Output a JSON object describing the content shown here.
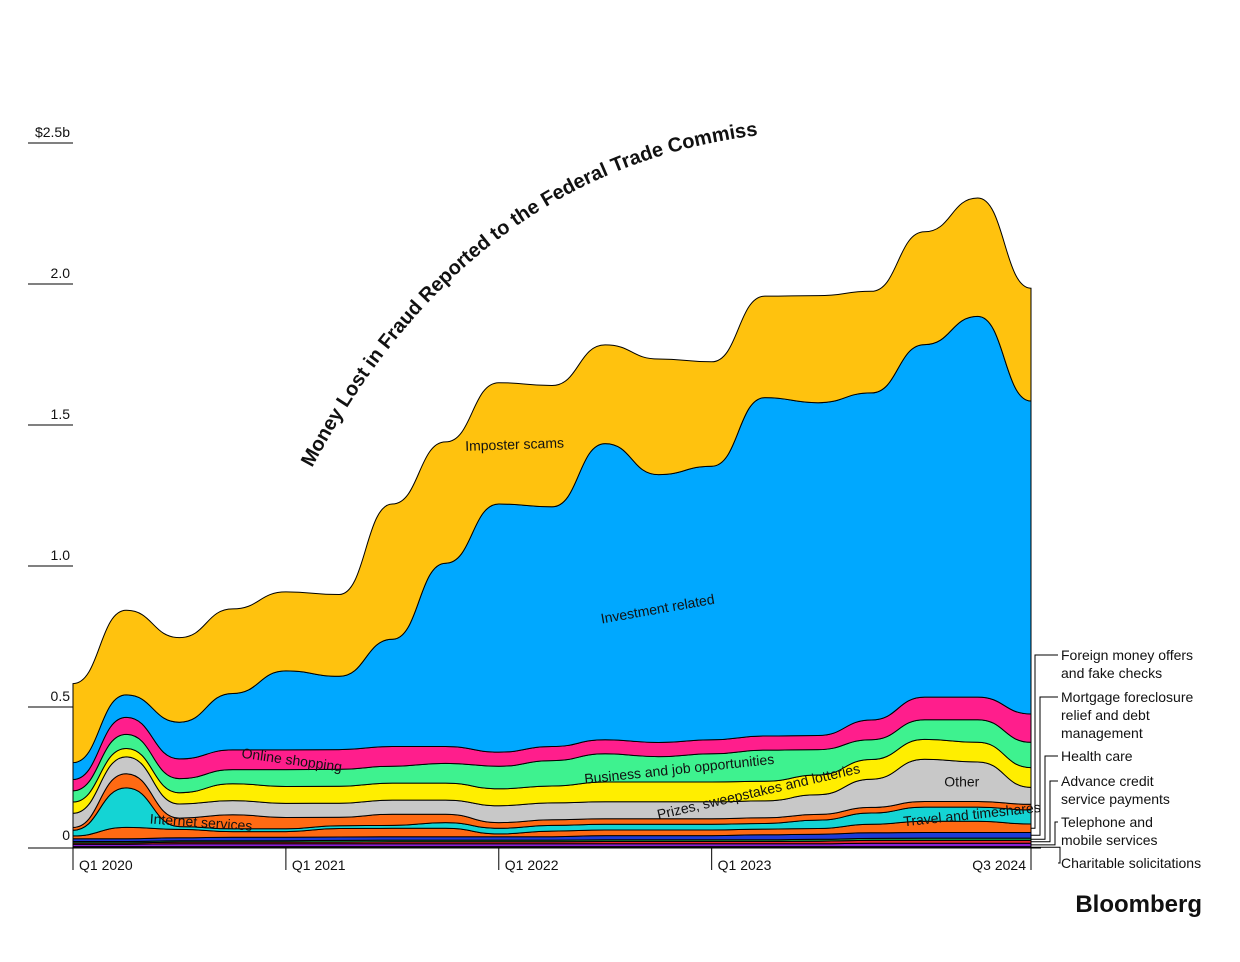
{
  "chart_data": {
    "type": "area",
    "title": "Money Lost in Fraud Reported to the Federal Trade Commission",
    "y_ticks": [
      {
        "value": 0,
        "label": "0"
      },
      {
        "value": 0.5,
        "label": "0.5"
      },
      {
        "value": 1.0,
        "label": "1.0"
      },
      {
        "value": 1.5,
        "label": "1.5"
      },
      {
        "value": 2.0,
        "label": "2.0"
      },
      {
        "value": 2.5,
        "label": "$2.5b"
      }
    ],
    "ylim": [
      0,
      2.85
    ],
    "x_ticks": [
      {
        "index": 0,
        "label": "Q1 2020"
      },
      {
        "index": 4,
        "label": "Q1 2021"
      },
      {
        "index": 8,
        "label": "Q1 2022"
      },
      {
        "index": 12,
        "label": "Q1 2023"
      },
      {
        "index": 18,
        "label": "Q3 2024"
      }
    ],
    "x": [
      "Q1 2020",
      "Q2 2020",
      "Q3 2020",
      "Q4 2020",
      "Q1 2021",
      "Q2 2021",
      "Q3 2021",
      "Q4 2021",
      "Q1 2022",
      "Q2 2022",
      "Q3 2022",
      "Q4 2022",
      "Q1 2023",
      "Q2 2023",
      "Q3 2023",
      "Q4 2023",
      "Q1 2024",
      "Q2 2024",
      "Q3 2024"
    ],
    "series": [
      {
        "name": "Charitable solicitations",
        "color": "#1a1a1a",
        "values": [
          0.005,
          0.005,
          0.005,
          0.005,
          0.005,
          0.005,
          0.005,
          0.005,
          0.005,
          0.005,
          0.005,
          0.005,
          0.005,
          0.005,
          0.005,
          0.005,
          0.005,
          0.005,
          0.005
        ]
      },
      {
        "name": "Telephone and mobile services",
        "color": "#8a1fd1",
        "values": [
          0.008,
          0.008,
          0.01,
          0.01,
          0.01,
          0.01,
          0.01,
          0.01,
          0.01,
          0.01,
          0.01,
          0.01,
          0.01,
          0.01,
          0.01,
          0.012,
          0.012,
          0.012,
          0.012
        ]
      },
      {
        "name": "Advance credit service payments",
        "color": "#e8272b",
        "values": [
          0.005,
          0.005,
          0.006,
          0.006,
          0.006,
          0.006,
          0.007,
          0.007,
          0.007,
          0.007,
          0.008,
          0.008,
          0.008,
          0.008,
          0.009,
          0.01,
          0.01,
          0.01,
          0.01
        ]
      },
      {
        "name": "Health care",
        "color": "#18a14a",
        "values": [
          0.005,
          0.005,
          0.005,
          0.005,
          0.005,
          0.006,
          0.006,
          0.006,
          0.006,
          0.006,
          0.006,
          0.006,
          0.006,
          0.006,
          0.007,
          0.007,
          0.008,
          0.008,
          0.008
        ]
      },
      {
        "name": "Mortgage foreclosure relief and debt management",
        "color": "#1f3bd6",
        "values": [
          0.01,
          0.01,
          0.01,
          0.012,
          0.012,
          0.012,
          0.012,
          0.012,
          0.012,
          0.012,
          0.015,
          0.015,
          0.015,
          0.018,
          0.018,
          0.02,
          0.02,
          0.02,
          0.02
        ]
      },
      {
        "name": "Foreign money offers and fake checks",
        "color": "#ff6a13",
        "values": [
          0.01,
          0.04,
          0.03,
          0.02,
          0.02,
          0.03,
          0.03,
          0.03,
          0.01,
          0.02,
          0.02,
          0.02,
          0.02,
          0.02,
          0.02,
          0.03,
          0.04,
          0.04,
          0.03
        ]
      },
      {
        "name": "Travel and timeshares",
        "color": "#14d4d4",
        "values": [
          0.02,
          0.14,
          0.01,
          0.01,
          0.01,
          0.01,
          0.01,
          0.02,
          0.02,
          0.02,
          0.02,
          0.02,
          0.02,
          0.02,
          0.03,
          0.04,
          0.05,
          0.05,
          0.05
        ]
      },
      {
        "name": "Internet services",
        "color": "#ff6a13",
        "values": [
          0.01,
          0.05,
          0.03,
          0.05,
          0.04,
          0.03,
          0.04,
          0.03,
          0.02,
          0.02,
          0.02,
          0.02,
          0.02,
          0.02,
          0.02,
          0.02,
          0.02,
          0.02,
          0.02
        ]
      },
      {
        "name": "Other",
        "color": "#c8c8c8",
        "values": [
          0.05,
          0.06,
          0.05,
          0.05,
          0.05,
          0.05,
          0.05,
          0.05,
          0.06,
          0.06,
          0.06,
          0.06,
          0.06,
          0.06,
          0.07,
          0.1,
          0.15,
          0.14,
          0.06
        ]
      },
      {
        "name": "Prizes, sweepstakes and lotteries",
        "color": "#ffee00",
        "values": [
          0.04,
          0.03,
          0.04,
          0.06,
          0.06,
          0.06,
          0.06,
          0.06,
          0.06,
          0.06,
          0.07,
          0.07,
          0.07,
          0.07,
          0.07,
          0.07,
          0.07,
          0.07,
          0.07
        ]
      },
      {
        "name": "Business and job opportunities",
        "color": "#3ef28f",
        "values": [
          0.04,
          0.05,
          0.05,
          0.05,
          0.06,
          0.06,
          0.06,
          0.07,
          0.08,
          0.09,
          0.1,
          0.09,
          0.1,
          0.11,
          0.09,
          0.07,
          0.07,
          0.08,
          0.09
        ]
      },
      {
        "name": "Online shopping",
        "color": "#ff1e8c",
        "values": [
          0.04,
          0.06,
          0.07,
          0.07,
          0.07,
          0.07,
          0.07,
          0.06,
          0.05,
          0.05,
          0.05,
          0.05,
          0.05,
          0.05,
          0.05,
          0.07,
          0.08,
          0.08,
          0.1
        ]
      },
      {
        "name": "Investment related",
        "color": "#00a8ff",
        "values": [
          0.06,
          0.08,
          0.13,
          0.2,
          0.28,
          0.26,
          0.38,
          0.65,
          0.88,
          0.85,
          1.05,
          0.95,
          0.97,
          1.2,
          1.18,
          1.16,
          1.25,
          1.35,
          1.11
        ]
      },
      {
        "name": "Imposter scams",
        "color": "#ffc20e",
        "values": [
          0.28,
          0.3,
          0.3,
          0.3,
          0.28,
          0.29,
          0.48,
          0.43,
          0.43,
          0.43,
          0.35,
          0.41,
          0.37,
          0.36,
          0.38,
          0.36,
          0.4,
          0.42,
          0.4
        ]
      }
    ],
    "inline_labels": [
      {
        "series": "Investment related",
        "text": "Investment related"
      },
      {
        "series": "Imposter scams",
        "text": "Imposter scams"
      },
      {
        "series": "Online shopping",
        "text": "Online shopping"
      },
      {
        "series": "Internet services",
        "text": "Internet services"
      },
      {
        "series": "Business and job opportunities",
        "text": "Business and job opportunities"
      },
      {
        "series": "Prizes, sweepstakes and lotteries",
        "text": "Prizes, sweepstakes and lotteries"
      },
      {
        "series": "Other",
        "text": "Other"
      },
      {
        "series": "Travel and timeshares",
        "text": "Travel and timeshares"
      }
    ],
    "side_labels": [
      {
        "series": "Foreign money offers and fake checks",
        "lines": [
          "Foreign money offers",
          "and fake checks"
        ]
      },
      {
        "series": "Mortgage foreclosure relief and debt management",
        "lines": [
          "Mortgage foreclosure",
          "relief and debt",
          "management"
        ]
      },
      {
        "series": "Health care",
        "lines": [
          "Health care"
        ]
      },
      {
        "series": "Advance credit service payments",
        "lines": [
          "Advance credit",
          "service payments"
        ]
      },
      {
        "series": "Telephone and mobile services",
        "lines": [
          "Telephone and",
          "mobile services"
        ]
      },
      {
        "series": "Charitable solicitations",
        "lines": [
          "Charitable solicitations"
        ]
      }
    ],
    "grid": false
  },
  "brand": "Bloomberg"
}
